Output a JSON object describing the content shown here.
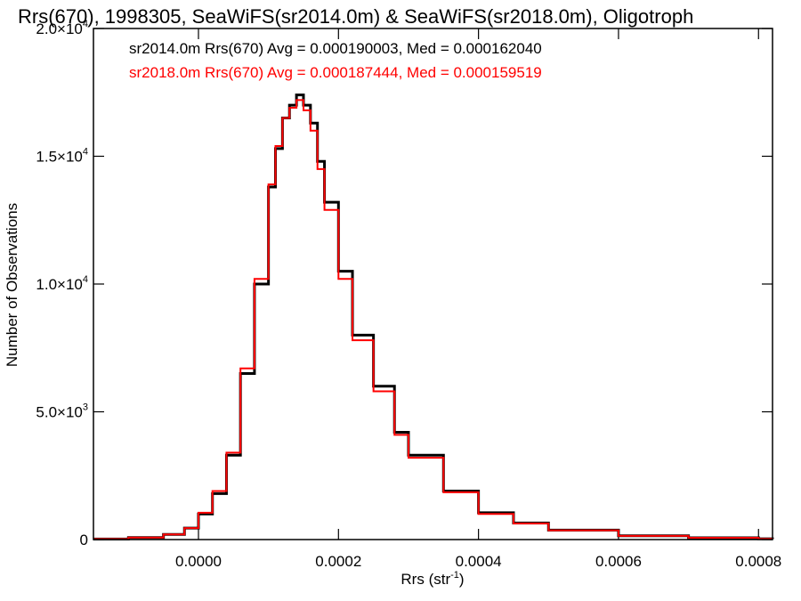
{
  "chart_data": {
    "type": "line",
    "step": true,
    "title": "Rrs(670), 1998305, SeaWiFS(sr2014.0m) & SeaWiFS(sr2018.0m), Oligotroph",
    "xlabel": "Rrs (str",
    "xlabel_sup": "-1",
    "xlabel_close": ")",
    "ylabel": "Number of Observations",
    "xlim": [
      -0.00015,
      0.00082
    ],
    "ylim": [
      0,
      20000
    ],
    "xticks": [
      {
        "value": 0.0,
        "label": "0.0000"
      },
      {
        "value": 0.0002,
        "label": "0.0002"
      },
      {
        "value": 0.0004,
        "label": "0.0004"
      },
      {
        "value": 0.0006,
        "label": "0.0006"
      },
      {
        "value": 0.0008,
        "label": "0.0008"
      }
    ],
    "yticks": [
      {
        "value": 0,
        "label": "0",
        "sup": ""
      },
      {
        "value": 5000,
        "label": "5.0×10",
        "sup": "3"
      },
      {
        "value": 10000,
        "label": "1.0×10",
        "sup": "4"
      },
      {
        "value": 15000,
        "label": "1.5×10",
        "sup": "4"
      },
      {
        "value": 20000,
        "label": "2.0×10",
        "sup": "4"
      }
    ],
    "x": [
      -0.00015,
      -0.0001,
      -5e-05,
      -2e-05,
      0.0,
      2e-05,
      4e-05,
      6e-05,
      8e-05,
      0.0001,
      0.00011,
      0.00012,
      0.00013,
      0.00014,
      0.00015,
      0.00016,
      0.00017,
      0.00018,
      0.0002,
      0.00022,
      0.00025,
      0.00028,
      0.0003,
      0.00035,
      0.0004,
      0.00045,
      0.0005,
      0.0006,
      0.0007,
      0.0008,
      0.00082
    ],
    "series": [
      {
        "name": "sr2014.0m",
        "color": "#000000",
        "values": [
          20,
          80,
          200,
          450,
          1000,
          1800,
          3300,
          6500,
          10000,
          13800,
          15300,
          16500,
          17000,
          17400,
          17000,
          16300,
          14800,
          13200,
          10500,
          8000,
          6000,
          4200,
          3300,
          1900,
          1050,
          650,
          370,
          150,
          70,
          30,
          20
        ]
      },
      {
        "name": "sr2018.0m",
        "color": "#ff0000",
        "values": [
          20,
          80,
          200,
          450,
          1050,
          1900,
          3400,
          6700,
          10200,
          13900,
          15400,
          16500,
          16900,
          17200,
          16800,
          16000,
          14500,
          12900,
          10200,
          7800,
          5800,
          4100,
          3200,
          1850,
          1000,
          630,
          360,
          145,
          68,
          28,
          20
        ]
      }
    ],
    "annotations": [
      {
        "text": "sr2014.0m Rrs(670) Avg = 0.000190003, Med = 0.000162040",
        "color": "#000000"
      },
      {
        "text": "sr2018.0m Rrs(670) Avg = 0.000187444, Med = 0.000159519",
        "color": "#ff0000"
      }
    ],
    "grid": false,
    "legend": "top-left"
  }
}
